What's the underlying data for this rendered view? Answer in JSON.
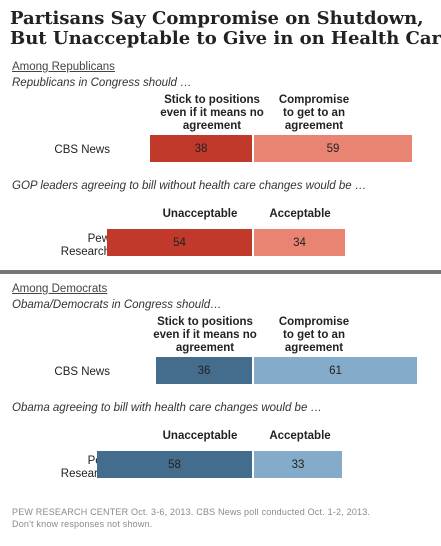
{
  "title": {
    "line1": "Partisans Say Compromise on Shutdown,",
    "line2": "But Unacceptable to Give in on Health Care"
  },
  "colors": {
    "rep_dark": "#c0392b",
    "rep_light": "#e98473",
    "dem_dark": "#446c8c",
    "dem_light": "#84abc9",
    "divider": "#777777"
  },
  "chart_data": [
    {
      "type": "bar",
      "orientation": "horizontal-stacked",
      "group": "Among Republicans",
      "question": "Republicans in Congress should …",
      "categories": [
        "CBS News"
      ],
      "series": [
        {
          "name": "Stick to positions even if it means no agreement",
          "values": [
            38
          ]
        },
        {
          "name": "Compromise to get to an agreement",
          "values": [
            59
          ]
        }
      ]
    },
    {
      "type": "bar",
      "orientation": "horizontal-stacked",
      "question": "GOP leaders agreeing to bill without health care changes would be …",
      "categories": [
        "Pew Research"
      ],
      "series": [
        {
          "name": "Unacceptable",
          "values": [
            54
          ]
        },
        {
          "name": "Acceptable",
          "values": [
            34
          ]
        }
      ]
    },
    {
      "type": "bar",
      "orientation": "horizontal-stacked",
      "group": "Among Democrats",
      "question": "Obama/Democrats in Congress should…",
      "categories": [
        "CBS News"
      ],
      "series": [
        {
          "name": "Stick to positions even if it means no agreement",
          "values": [
            36
          ]
        },
        {
          "name": "Compromise to get to an agreement",
          "values": [
            61
          ]
        }
      ]
    },
    {
      "type": "bar",
      "orientation": "horizontal-stacked",
      "question": "Obama agreeing to bill with health care changes would be …",
      "categories": [
        "Pew Research"
      ],
      "series": [
        {
          "name": "Unacceptable",
          "values": [
            58
          ]
        },
        {
          "name": "Acceptable",
          "values": [
            33
          ]
        }
      ]
    }
  ],
  "labels": {
    "rep_group": "Among Republicans",
    "rep_q1": "Republicans in Congress should …",
    "rep_q1_col1": [
      "Stick to positions",
      "even if it means no",
      "agreement"
    ],
    "rep_q1_col2": [
      "Compromise",
      "to get to an",
      "agreement"
    ],
    "rep_q1_row": [
      "CBS News"
    ],
    "rep_q2": "GOP leaders agreeing to bill without health care changes would be …",
    "rep_q2_col1": [
      "Unacceptable"
    ],
    "rep_q2_col2": [
      "Acceptable"
    ],
    "rep_q2_row": [
      "Pew",
      "Research"
    ],
    "dem_group": "Among Democrats",
    "dem_q1": "Obama/Democrats in Congress should…",
    "dem_q1_col1": [
      "Stick to positions",
      "even if it means no",
      "agreement"
    ],
    "dem_q1_col2": [
      "Compromise",
      "to get to an",
      "agreement"
    ],
    "dem_q1_row": [
      "CBS News"
    ],
    "dem_q2": "Obama agreeing to bill with health care changes would be …",
    "dem_q2_col1": [
      "Unacceptable"
    ],
    "dem_q2_col2": [
      "Acceptable"
    ],
    "dem_q2_row": [
      "Pew",
      "Research"
    ]
  },
  "footer": {
    "line1": "PEW RESEARCH CENTER Oct. 3-6, 2013. CBS News poll conducted Oct. 1-2, 2013.",
    "line2": "Don't know responses not shown."
  }
}
